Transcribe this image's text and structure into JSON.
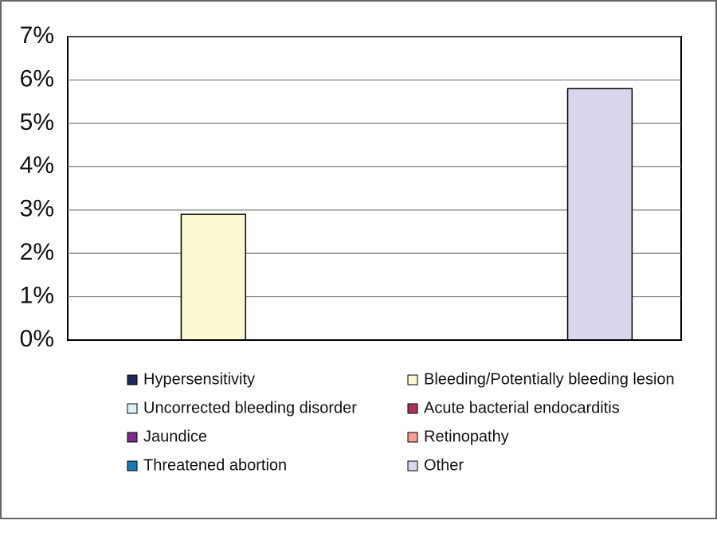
{
  "chart_data": {
    "type": "bar",
    "categories": [
      null
    ],
    "series": [
      {
        "name": "Hypersensitivity",
        "color": "#1f2a5c",
        "values": [
          0
        ]
      },
      {
        "name": "Bleeding/Potentially bleeding lesion",
        "color": "#fbf8d2",
        "values": [
          2.9
        ]
      },
      {
        "name": "Uncorrected bleeding disorder",
        "color": "#def2f6",
        "values": [
          0
        ]
      },
      {
        "name": "Acute bacterial endocarditis",
        "color": "#b03062",
        "values": [
          0
        ]
      },
      {
        "name": "Jaundice",
        "color": "#7b2d8b",
        "values": [
          0
        ]
      },
      {
        "name": "Retinopathy",
        "color": "#f2a091",
        "values": [
          0
        ]
      },
      {
        "name": "Threatened abortion",
        "color": "#1a78b8",
        "values": [
          0
        ]
      },
      {
        "name": "Other",
        "color": "#d9d7ee",
        "values": [
          5.8
        ]
      }
    ],
    "ylim": [
      0,
      7
    ],
    "yticks": [
      {
        "value": 0,
        "label": "0%"
      },
      {
        "value": 1,
        "label": "1%"
      },
      {
        "value": 2,
        "label": "2%"
      },
      {
        "value": 3,
        "label": "3%"
      },
      {
        "value": 4,
        "label": "4%"
      },
      {
        "value": 5,
        "label": "5%"
      },
      {
        "value": 6,
        "label": "6%"
      },
      {
        "value": 7,
        "label": "7%"
      }
    ],
    "grid": true
  }
}
